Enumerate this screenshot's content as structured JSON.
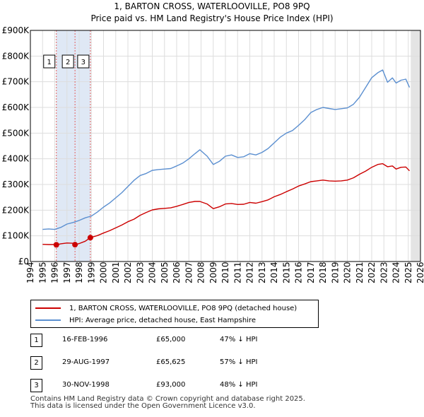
{
  "header": {
    "title": "1, BARTON CROSS, WATERLOOVILLE, PO8 9PQ",
    "subtitle": "Price paid vs. HM Land Registry's House Price Index (HPI)"
  },
  "chart_data": {
    "type": "line",
    "title": "1, BARTON CROSS, WATERLOOVILLE, PO8 9PQ",
    "subtitle": "Price paid vs. HM Land Registry's House Price Index (HPI)",
    "xlim": [
      1994,
      2026
    ],
    "ylim": [
      0,
      900000
    ],
    "grid": true,
    "x_ticks": [
      1994,
      1995,
      1996,
      1997,
      1998,
      1999,
      2000,
      2001,
      2002,
      2003,
      2004,
      2005,
      2006,
      2007,
      2008,
      2009,
      2010,
      2011,
      2012,
      2013,
      2014,
      2015,
      2016,
      2017,
      2018,
      2019,
      2020,
      2021,
      2022,
      2023,
      2024,
      2025,
      2026
    ],
    "x_tick_labels": [
      "1994",
      "1995",
      "1996",
      "1997",
      "1998",
      "1999",
      "2000",
      "2001",
      "2002",
      "2003",
      "2004",
      "2005",
      "2006",
      "2007",
      "2008",
      "2009",
      "2010",
      "2011",
      "2012",
      "2013",
      "2014",
      "2015",
      "2016",
      "2017",
      "2018",
      "2019",
      "2020",
      "2021",
      "2022",
      "2023",
      "2024",
      "2025",
      "2026"
    ],
    "y_ticks": [
      0,
      100000,
      200000,
      300000,
      400000,
      500000,
      600000,
      700000,
      800000,
      900000
    ],
    "y_tick_labels": [
      "£0",
      "£100K",
      "£200K",
      "£300K",
      "£400K",
      "£500K",
      "£600K",
      "£700K",
      "£800K",
      "£900K"
    ],
    "data_start": 1995,
    "data_end": 2025.2,
    "series": [
      {
        "name": "1, BARTON CROSS, WATERLOOVILLE, PO8 9PQ (detached house)",
        "color": "#cc0000",
        "x": [
          1995,
          1995.5,
          1996,
          1996.13,
          1996.5,
          1997,
          1997.5,
          1997.66,
          1998,
          1998.5,
          1998.92,
          1999.5,
          2000,
          2000.5,
          2001,
          2001.5,
          2002,
          2002.5,
          2003,
          2003.5,
          2004,
          2004.5,
          2005,
          2005.5,
          2006,
          2006.5,
          2007,
          2007.5,
          2007.9,
          2008.5,
          2009,
          2009.5,
          2010,
          2010.5,
          2011,
          2011.5,
          2012,
          2012.5,
          2013,
          2013.5,
          2014,
          2014.5,
          2015,
          2015.5,
          2016,
          2016.5,
          2017,
          2017.5,
          2018,
          2018.5,
          2019,
          2019.5,
          2020,
          2020.5,
          2021,
          2021.5,
          2022,
          2022.5,
          2022.9,
          2023.3,
          2023.7,
          2024,
          2024.4,
          2024.8,
          2025.1
        ],
        "values": [
          67000,
          66000,
          66000,
          65000,
          69000,
          72000,
          71000,
          65625,
          70000,
          79000,
          93000,
          101000,
          111000,
          120000,
          131000,
          142000,
          155000,
          165000,
          180000,
          191000,
          201000,
          205000,
          207000,
          209000,
          215000,
          222000,
          230000,
          234000,
          234000,
          224000,
          206000,
          213000,
          224000,
          226000,
          222000,
          223000,
          230000,
          227000,
          233000,
          240000,
          252000,
          261000,
          272000,
          282000,
          294000,
          302000,
          311000,
          314000,
          317000,
          314000,
          313000,
          314000,
          317000,
          326000,
          340000,
          352000,
          367000,
          378000,
          381000,
          369000,
          372000,
          360000,
          367000,
          368000,
          353000
        ]
      },
      {
        "name": "HPI: Average price, detached house, East Hampshire",
        "color": "#5b8fd0",
        "x": [
          1995,
          1995.5,
          1996,
          1996.5,
          1997,
          1997.5,
          1998,
          1998.5,
          1999,
          1999.5,
          2000,
          2000.5,
          2001,
          2001.5,
          2002,
          2002.5,
          2003,
          2003.5,
          2004,
          2004.5,
          2005,
          2005.5,
          2006,
          2006.5,
          2007,
          2007.5,
          2007.9,
          2008.5,
          2009,
          2009.5,
          2010,
          2010.5,
          2011,
          2011.5,
          2012,
          2012.5,
          2013,
          2013.5,
          2014,
          2014.5,
          2015,
          2015.5,
          2016,
          2016.5,
          2017,
          2017.5,
          2018,
          2018.5,
          2019,
          2019.5,
          2020,
          2020.5,
          2021,
          2021.5,
          2022,
          2022.5,
          2022.9,
          2023.3,
          2023.7,
          2024,
          2024.4,
          2024.8,
          2025.1
        ],
        "values": [
          125000,
          127000,
          125000,
          133000,
          146000,
          152000,
          160000,
          170000,
          177000,
          193000,
          212000,
          228000,
          248000,
          268000,
          292000,
          316000,
          335000,
          343000,
          355000,
          358000,
          360000,
          362000,
          372000,
          383000,
          400000,
          420000,
          435000,
          410000,
          378000,
          390000,
          410000,
          415000,
          405000,
          408000,
          420000,
          415000,
          425000,
          440000,
          462000,
          484000,
          500000,
          510000,
          530000,
          552000,
          580000,
          592000,
          600000,
          596000,
          592000,
          595000,
          598000,
          612000,
          640000,
          678000,
          716000,
          735000,
          746000,
          698000,
          715000,
          695000,
          706000,
          710000,
          678000
        ]
      }
    ],
    "sales": [
      {
        "label": "1",
        "x": 1996.13,
        "value": 65000
      },
      {
        "label": "2",
        "x": 1997.66,
        "value": 65625
      },
      {
        "label": "3",
        "x": 1998.92,
        "value": 93000
      }
    ]
  },
  "legend": {
    "items": [
      {
        "label": "1, BARTON CROSS, WATERLOOVILLE, PO8 9PQ (detached house)",
        "color": "#cc0000"
      },
      {
        "label": "HPI: Average price, detached house, East Hampshire",
        "color": "#5b8fd0"
      }
    ]
  },
  "sales_table": [
    {
      "num": "1",
      "date": "16-FEB-1996",
      "price": "£65,000",
      "hpi": "47% ↓ HPI"
    },
    {
      "num": "2",
      "date": "29-AUG-1997",
      "price": "£65,625",
      "hpi": "57% ↓ HPI"
    },
    {
      "num": "3",
      "date": "30-NOV-1998",
      "price": "£93,000",
      "hpi": "48% ↓ HPI"
    }
  ],
  "footer": {
    "line1": "Contains HM Land Registry data © Crown copyright and database right 2025.",
    "line2": "This data is licensed under the Open Government Licence v3.0."
  },
  "colors": {
    "property": "#cc0000",
    "hpi": "#5b8fd0",
    "sale_shade": "#dfe8f5",
    "future_shade": "#e4e4e4",
    "grid": "#dddddd",
    "sale_line": "#e06060",
    "plot_bg": "#ffffff"
  }
}
